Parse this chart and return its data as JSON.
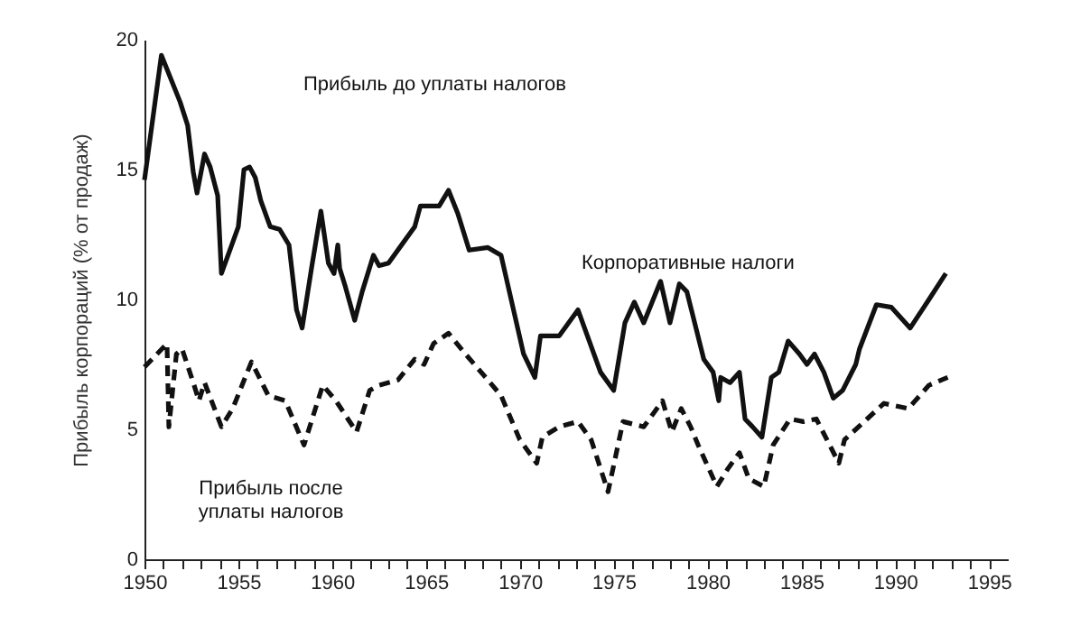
{
  "chart_data": {
    "type": "line",
    "ylabel": "Прибыль корпораций (% от продаж)",
    "xlim": [
      1950,
      1996
    ],
    "ylim": [
      0,
      20
    ],
    "yticks": [
      0,
      5,
      10,
      15,
      20
    ],
    "xticks": [
      1950,
      {
        "value": 1951,
        "label": null
      },
      {
        "value": 1952,
        "label": null
      },
      {
        "value": 1953,
        "label": null
      },
      {
        "value": 1954,
        "label": null
      },
      1955,
      {
        "value": 1956,
        "label": null
      },
      {
        "value": 1957,
        "label": null
      },
      {
        "value": 1958,
        "label": null
      },
      {
        "value": 1959,
        "label": null
      },
      1960,
      {
        "value": 1961,
        "label": null
      },
      {
        "value": 1962,
        "label": null
      },
      {
        "value": 1963,
        "label": null
      },
      {
        "value": 1964,
        "label": null
      },
      1965,
      {
        "value": 1966,
        "label": null
      },
      {
        "value": 1967,
        "label": null
      },
      {
        "value": 1968,
        "label": null
      },
      {
        "value": 1969,
        "label": null
      },
      1970,
      {
        "value": 1971,
        "label": null
      },
      {
        "value": 1972,
        "label": null
      },
      {
        "value": 1973,
        "label": null
      },
      {
        "value": 1974,
        "label": null
      },
      1975,
      {
        "value": 1976,
        "label": null
      },
      {
        "value": 1977,
        "label": null
      },
      {
        "value": 1978,
        "label": null
      },
      {
        "value": 1979,
        "label": null
      },
      1980,
      {
        "value": 1981,
        "label": null
      },
      {
        "value": 1982,
        "label": null
      },
      {
        "value": 1983,
        "label": null
      },
      {
        "value": 1984,
        "label": null
      },
      1985,
      {
        "value": 1986,
        "label": null
      },
      {
        "value": 1987,
        "label": null
      },
      {
        "value": 1988,
        "label": null
      },
      {
        "value": 1989,
        "label": null
      },
      1990,
      {
        "value": 1991,
        "label": null
      },
      {
        "value": 1992,
        "label": null
      },
      {
        "value": 1993,
        "label": null
      },
      {
        "value": 1994,
        "label": null
      },
      1995
    ],
    "grid": false,
    "marker": "none",
    "series": [
      {
        "color": "#111111",
        "line_style": "solid",
        "x": [
          1950.0,
          1950.9,
          1951.9,
          1952.3,
          1952.6,
          1952.8,
          1953.2,
          1953.5,
          1953.9,
          1954.1,
          1955.0,
          1955.3,
          1955.6,
          1955.9,
          1956.2,
          1956.7,
          1957.2,
          1957.7,
          1958.1,
          1958.4,
          1958.9,
          1959.4,
          1959.8,
          1960.1,
          1960.3,
          1960.4,
          1960.7,
          1961.2,
          1961.6,
          1962.2,
          1962.5,
          1963.0,
          1963.8,
          1964.4,
          1964.7,
          1965.7,
          1966.2,
          1966.7,
          1967.3,
          1968.3,
          1969.0,
          1970.2,
          1970.8,
          1971.1,
          1972.1,
          1973.1,
          1973.7,
          1974.3,
          1975.0,
          1975.6,
          1976.1,
          1976.6,
          1977.5,
          1978.0,
          1978.5,
          1978.9,
          1979.8,
          1980.3,
          1980.6,
          1980.7,
          1981.2,
          1981.7,
          1982.0,
          1982.4,
          1982.9,
          1983.4,
          1983.8,
          1984.3,
          1984.9,
          1985.3,
          1985.7,
          1986.2,
          1986.7,
          1987.2,
          1987.9,
          1988.1,
          1989.0,
          1989.8,
          1990.8,
          1991.8,
          1992.7
        ],
        "values": [
          14.6,
          19.4,
          17.6,
          16.7,
          14.9,
          14.1,
          15.6,
          15.1,
          14.0,
          11.0,
          12.8,
          15.0,
          15.1,
          14.7,
          13.8,
          12.8,
          12.7,
          12.1,
          9.6,
          8.9,
          11.2,
          13.4,
          11.4,
          11.0,
          12.1,
          11.2,
          10.5,
          9.2,
          10.3,
          11.7,
          11.3,
          11.4,
          12.2,
          12.8,
          13.6,
          13.6,
          14.2,
          13.3,
          11.9,
          12.0,
          11.7,
          7.9,
          7.0,
          8.6,
          8.6,
          9.6,
          8.4,
          7.2,
          6.5,
          9.1,
          9.9,
          9.1,
          10.7,
          9.1,
          10.6,
          10.3,
          7.7,
          7.2,
          6.1,
          7.0,
          6.8,
          7.2,
          5.4,
          5.1,
          4.7,
          7.0,
          7.2,
          8.4,
          7.9,
          7.5,
          7.9,
          7.2,
          6.2,
          6.5,
          7.5,
          8.1,
          9.8,
          9.7,
          8.9,
          10.0,
          11.0
        ]
      },
      {
        "color": "#111111",
        "line_style": "dashed",
        "x": [
          1950.0,
          1951.2,
          1951.3,
          1951.7,
          1952.0,
          1952.6,
          1952.9,
          1953.2,
          1954.1,
          1954.7,
          1955.7,
          1956.6,
          1957.5,
          1958.5,
          1959.5,
          1960.2,
          1961.3,
          1962.0,
          1962.5,
          1963.5,
          1964.4,
          1964.9,
          1965.4,
          1966.2,
          1967.1,
          1968.3,
          1969.0,
          1970.0,
          1970.9,
          1971.2,
          1972.1,
          1973.1,
          1973.8,
          1974.7,
          1975.5,
          1976.6,
          1977.6,
          1978.1,
          1978.6,
          1979.1,
          1979.5,
          1980.5,
          1981.1,
          1981.7,
          1982.2,
          1983.0,
          1983.5,
          1984.4,
          1985.1,
          1985.8,
          1987.0,
          1987.3,
          1988.5,
          1989.4,
          1990.7,
          1991.8,
          1992.8
        ],
        "values": [
          7.4,
          8.3,
          5.1,
          7.9,
          8.1,
          6.8,
          6.1,
          6.8,
          5.1,
          5.8,
          7.6,
          6.3,
          6.1,
          4.4,
          6.7,
          6.1,
          4.9,
          6.5,
          6.7,
          6.9,
          7.7,
          7.5,
          8.3,
          8.7,
          7.9,
          6.9,
          6.3,
          4.6,
          3.7,
          4.7,
          5.1,
          5.3,
          4.6,
          2.6,
          5.3,
          5.1,
          6.1,
          4.9,
          5.8,
          5.1,
          4.4,
          2.8,
          3.5,
          4.1,
          3.1,
          2.8,
          4.4,
          5.4,
          5.3,
          5.4,
          3.7,
          4.6,
          5.4,
          6.0,
          5.8,
          6.7,
          7.0
        ]
      }
    ],
    "annotations": [
      "Прибыль до уплаты налогов",
      "Корпоративные налоги",
      "Прибыль после\nуплаты налогов"
    ]
  }
}
